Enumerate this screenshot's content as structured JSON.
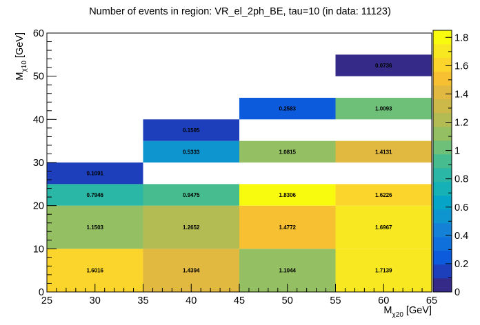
{
  "chart_data": {
    "type": "heatmap",
    "title": "Number of events in region: VR_el_2ph_BE, tau=10 (in data: 11123)",
    "xlabel": {
      "main": "M",
      "sub": "χ20",
      "unit": " [GeV]"
    },
    "ylabel": {
      "main": "M",
      "sub": "χ10",
      "unit": " [GeV]"
    },
    "xlim": [
      25,
      65
    ],
    "ylim": [
      0,
      60
    ],
    "x_ticks": [
      25,
      30,
      35,
      40,
      45,
      50,
      55,
      60,
      65
    ],
    "y_ticks": [
      0,
      10,
      20,
      30,
      40,
      50,
      60
    ],
    "zlim": [
      0,
      1.85
    ],
    "z_ticks": [
      "0",
      "0.2",
      "0.4",
      "0.6",
      "0.8",
      "1",
      "1.2",
      "1.4",
      "1.6",
      "1.8"
    ],
    "cells": [
      {
        "x0": 25,
        "x1": 35,
        "y0": 0,
        "y1": 10,
        "value": 1.6016,
        "label": "1.6016"
      },
      {
        "x0": 35,
        "x1": 45,
        "y0": 0,
        "y1": 10,
        "value": 1.4394,
        "label": "1.4394"
      },
      {
        "x0": 45,
        "x1": 55,
        "y0": 0,
        "y1": 10,
        "value": 1.1044,
        "label": "1.1044"
      },
      {
        "x0": 55,
        "x1": 65,
        "y0": 0,
        "y1": 10,
        "value": 1.7139,
        "label": "1.7139"
      },
      {
        "x0": 25,
        "x1": 35,
        "y0": 10,
        "y1": 20,
        "value": 1.1503,
        "label": "1.1503"
      },
      {
        "x0": 35,
        "x1": 45,
        "y0": 10,
        "y1": 20,
        "value": 1.2652,
        "label": "1.2652"
      },
      {
        "x0": 45,
        "x1": 55,
        "y0": 10,
        "y1": 20,
        "value": 1.4772,
        "label": "1.4772"
      },
      {
        "x0": 55,
        "x1": 65,
        "y0": 10,
        "y1": 20,
        "value": 1.6967,
        "label": "1.6967"
      },
      {
        "x0": 25,
        "x1": 35,
        "y0": 20,
        "y1": 25,
        "value": 0.7946,
        "label": "0.7946"
      },
      {
        "x0": 35,
        "x1": 45,
        "y0": 20,
        "y1": 25,
        "value": 0.9475,
        "label": "0.9475"
      },
      {
        "x0": 45,
        "x1": 55,
        "y0": 20,
        "y1": 25,
        "value": 1.8306,
        "label": "1.8306"
      },
      {
        "x0": 55,
        "x1": 65,
        "y0": 20,
        "y1": 25,
        "value": 1.6226,
        "label": "1.6226"
      },
      {
        "x0": 25,
        "x1": 35,
        "y0": 25,
        "y1": 30,
        "value": 0.1091,
        "label": "0.1091"
      },
      {
        "x0": 35,
        "x1": 45,
        "y0": 30,
        "y1": 35,
        "value": 0.5333,
        "label": "0.5333"
      },
      {
        "x0": 45,
        "x1": 55,
        "y0": 30,
        "y1": 35,
        "value": 1.0815,
        "label": "1.0815"
      },
      {
        "x0": 55,
        "x1": 65,
        "y0": 30,
        "y1": 35,
        "value": 1.4131,
        "label": "1.4131"
      },
      {
        "x0": 35,
        "x1": 45,
        "y0": 35,
        "y1": 40,
        "value": 0.1595,
        "label": "0.1595"
      },
      {
        "x0": 45,
        "x1": 55,
        "y0": 40,
        "y1": 45,
        "value": 0.2583,
        "label": "0.2583"
      },
      {
        "x0": 55,
        "x1": 65,
        "y0": 40,
        "y1": 45,
        "value": 1.0093,
        "label": "1.0093"
      },
      {
        "x0": 55,
        "x1": 65,
        "y0": 50,
        "y1": 55,
        "value": 0.0736,
        "label": "0.0736"
      }
    ],
    "palette": [
      "#352a87",
      "#1d3fbb",
      "#0d5bdd",
      "#0f70dc",
      "#1481d6",
      "#0e95cf",
      "#06a4c6",
      "#16b0b7",
      "#2ab7a5",
      "#47bd8f",
      "#6ebf78",
      "#94bf62",
      "#b2bc53",
      "#cdb84a",
      "#e2b940",
      "#f7c033",
      "#fcd52c",
      "#f7e822",
      "#f9fb0e"
    ]
  }
}
